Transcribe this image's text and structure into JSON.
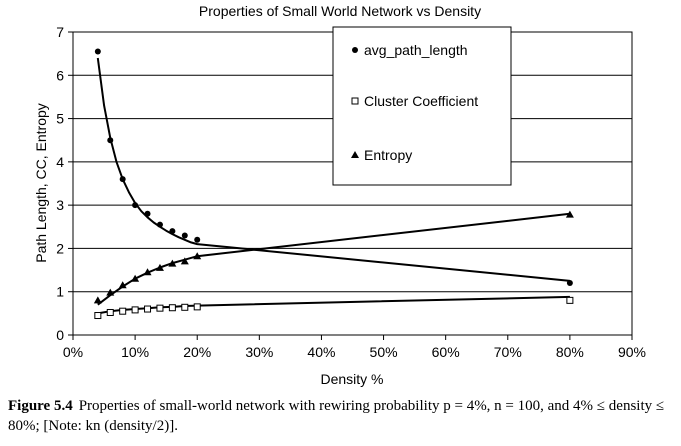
{
  "chart_data": {
    "type": "line",
    "title": "Properties of Small World Network vs Density",
    "xlabel": "Density %",
    "ylabel": "Path Length, CC, Entropy",
    "xlim": [
      0,
      90
    ],
    "ylim": [
      0,
      7
    ],
    "x_ticks": [
      0,
      10,
      20,
      30,
      40,
      50,
      60,
      70,
      80,
      90
    ],
    "x_tick_labels": [
      "0%",
      "10%",
      "20%",
      "30%",
      "40%",
      "50%",
      "60%",
      "70%",
      "80%",
      "90%"
    ],
    "y_ticks": [
      0,
      1,
      2,
      3,
      4,
      5,
      6,
      7
    ],
    "y_tick_labels": [
      "0",
      "1",
      "2",
      "3",
      "4",
      "5",
      "6",
      "7"
    ],
    "grid": "horizontal",
    "legend_position": "top-right",
    "series": [
      {
        "name": "avg_path_length",
        "marker": "circle",
        "x": [
          4,
          6,
          8,
          10,
          12,
          14,
          16,
          18,
          20,
          80
        ],
        "y": [
          6.55,
          4.5,
          3.6,
          3.0,
          2.8,
          2.55,
          2.4,
          2.3,
          2.2,
          1.2
        ],
        "curve_x": [
          4,
          5,
          6,
          7,
          8,
          9,
          10,
          11,
          12,
          13,
          14,
          15,
          16,
          17,
          18,
          19,
          20,
          80
        ],
        "curve_y": [
          6.4,
          5.3,
          4.55,
          4.0,
          3.6,
          3.3,
          3.05,
          2.86,
          2.72,
          2.6,
          2.5,
          2.41,
          2.33,
          2.26,
          2.2,
          2.14,
          2.1,
          1.25
        ]
      },
      {
        "name": "Cluster Coefficient",
        "marker": "square",
        "x": [
          4,
          6,
          8,
          10,
          12,
          14,
          16,
          18,
          20,
          80
        ],
        "y": [
          0.45,
          0.52,
          0.55,
          0.58,
          0.6,
          0.62,
          0.63,
          0.64,
          0.65,
          0.8
        ],
        "curve_x": [
          4,
          6,
          8,
          10,
          12,
          14,
          16,
          18,
          20,
          80
        ],
        "curve_y": [
          0.5,
          0.55,
          0.58,
          0.6,
          0.62,
          0.64,
          0.65,
          0.67,
          0.68,
          0.88
        ]
      },
      {
        "name": "Entropy",
        "marker": "triangle",
        "x": [
          4,
          6,
          8,
          10,
          12,
          14,
          16,
          18,
          20,
          80
        ],
        "y": [
          0.8,
          0.98,
          1.15,
          1.3,
          1.45,
          1.55,
          1.65,
          1.7,
          1.82,
          2.78
        ],
        "curve_x": [
          4,
          6,
          8,
          10,
          12,
          14,
          16,
          18,
          20,
          80
        ],
        "curve_y": [
          0.7,
          0.92,
          1.12,
          1.3,
          1.44,
          1.56,
          1.66,
          1.74,
          1.82,
          2.8
        ]
      }
    ]
  },
  "caption": {
    "label": "Figure 5.4",
    "text": "Properties of small-world network with rewiring probability p = 4%, n = 100, and 4% ≤ density ≤ 80%; [Note: kn (density/2)]."
  }
}
